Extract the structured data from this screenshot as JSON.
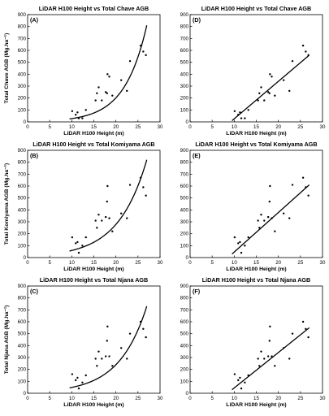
{
  "chart_data": [
    {
      "panel_label": "(A)",
      "type": "scatter",
      "title": "LiDAR H100 Height vs Total Chave AGB",
      "xlabel": "LiDAR H100 Height (m)",
      "ylabel": "Total Chave AGB (Mg.ha⁻¹)",
      "xlim": [
        0,
        30
      ],
      "ylim": [
        0,
        900
      ],
      "xticks": [
        0,
        5,
        10,
        15,
        20,
        25,
        30
      ],
      "yticks": [
        0,
        100,
        200,
        300,
        400,
        500,
        600,
        700,
        800,
        900
      ],
      "points": {
        "x": [
          10.1,
          10.9,
          11.3,
          11.6,
          12.4,
          13.2,
          15.4,
          15.7,
          16.1,
          16.8,
          17.7,
          18.0,
          18.1,
          18.5,
          19.2,
          21.2,
          22.5,
          23.2,
          25.6,
          26.2,
          26.8
        ],
        "y": [
          90,
          60,
          80,
          30,
          30,
          100,
          180,
          240,
          290,
          180,
          250,
          240,
          400,
          380,
          220,
          350,
          260,
          510,
          640,
          590,
          560
        ]
      },
      "fit": {
        "model": "exponential",
        "x": [
          9.5,
          12,
          14,
          16,
          18,
          20,
          22,
          24,
          26,
          27
        ],
        "y": [
          25,
          55,
          100,
          155,
          220,
          305,
          410,
          540,
          700,
          810
        ]
      }
    },
    {
      "panel_label": "(D)",
      "type": "scatter",
      "title": "LiDAR H100 Height vs Total Chave AGB",
      "xlabel": "LiDAR H100 Height (m)",
      "ylabel": "",
      "xlim": [
        0,
        30
      ],
      "ylim": [
        0,
        900
      ],
      "xticks": [
        0,
        5,
        10,
        15,
        20,
        25,
        30
      ],
      "yticks": [
        0,
        100,
        200,
        300,
        400,
        500,
        600,
        700,
        800,
        900
      ],
      "points": {
        "x": [
          10.1,
          10.9,
          11.3,
          11.6,
          12.4,
          13.2,
          15.4,
          15.7,
          16.1,
          16.8,
          17.7,
          18.0,
          18.1,
          18.5,
          19.2,
          21.2,
          22.5,
          23.2,
          25.6,
          26.2,
          26.8
        ],
        "y": [
          90,
          60,
          80,
          30,
          30,
          100,
          180,
          240,
          290,
          180,
          250,
          240,
          400,
          380,
          220,
          350,
          260,
          510,
          640,
          590,
          560
        ]
      },
      "fit": {
        "model": "linear",
        "x": [
          9.5,
          27
        ],
        "y": [
          10,
          560
        ]
      }
    },
    {
      "panel_label": "(B)",
      "type": "scatter",
      "title": "LiDAR H100 Height vs Total Komiyama AGB",
      "xlabel": "LiDAR H100 Height (m)",
      "ylabel": "Total Komiyama AGB (Mg.ha⁻¹)",
      "xlim": [
        0,
        30
      ],
      "ylim": [
        0,
        900
      ],
      "xticks": [
        0,
        5,
        10,
        15,
        20,
        25,
        30
      ],
      "yticks": [
        0,
        100,
        200,
        300,
        400,
        500,
        600,
        700,
        800,
        900
      ],
      "points": {
        "x": [
          10.1,
          10.9,
          11.3,
          11.6,
          12.4,
          13.2,
          15.4,
          15.7,
          16.1,
          16.8,
          17.7,
          18.0,
          18.1,
          18.5,
          19.2,
          21.2,
          22.5,
          23.2,
          25.6,
          26.2,
          26.8
        ],
        "y": [
          170,
          120,
          130,
          40,
          100,
          170,
          310,
          250,
          360,
          310,
          340,
          470,
          600,
          330,
          220,
          370,
          330,
          610,
          670,
          590,
          520
        ]
      },
      "fit": {
        "model": "exponential",
        "x": [
          9.5,
          12,
          14,
          16,
          18,
          20,
          22,
          24,
          26,
          27
        ],
        "y": [
          55,
          95,
          145,
          205,
          275,
          360,
          465,
          590,
          730,
          820
        ]
      }
    },
    {
      "panel_label": "(E)",
      "type": "scatter",
      "title": "LiDAR H100 Height vs Total Komiyama AGB",
      "xlabel": "LiDAR H100 Height (m)",
      "ylabel": "",
      "xlim": [
        0,
        30
      ],
      "ylim": [
        0,
        900
      ],
      "xticks": [
        0,
        5,
        10,
        15,
        20,
        25,
        30
      ],
      "yticks": [
        0,
        100,
        200,
        300,
        400,
        500,
        600,
        700,
        800,
        900
      ],
      "points": {
        "x": [
          10.1,
          10.9,
          11.3,
          11.6,
          12.4,
          13.2,
          15.4,
          15.7,
          16.1,
          16.8,
          17.7,
          18.0,
          18.1,
          18.5,
          19.2,
          21.2,
          22.5,
          23.2,
          25.6,
          26.2,
          26.8
        ],
        "y": [
          170,
          120,
          130,
          40,
          100,
          170,
          310,
          250,
          360,
          310,
          340,
          470,
          600,
          330,
          220,
          370,
          330,
          610,
          670,
          590,
          520
        ]
      },
      "fit": {
        "model": "linear",
        "x": [
          9.5,
          27
        ],
        "y": [
          30,
          610
        ]
      }
    },
    {
      "panel_label": "(C)",
      "type": "scatter",
      "title": "LiDAR H100 Height vs Total Njana AGB",
      "xlabel": "LiDAR H100 Height (m)",
      "ylabel": "Total Njana AGB (Mg.ha⁻¹)",
      "xlim": [
        0,
        30
      ],
      "ylim": [
        0,
        900
      ],
      "xticks": [
        0,
        5,
        10,
        15,
        20,
        25,
        30
      ],
      "yticks": [
        0,
        100,
        200,
        300,
        400,
        500,
        600,
        700,
        800,
        900
      ],
      "points": {
        "x": [
          10.1,
          10.9,
          11.3,
          11.6,
          12.4,
          13.2,
          15.4,
          15.7,
          16.1,
          16.8,
          17.7,
          18.0,
          18.1,
          18.5,
          19.2,
          21.2,
          22.5,
          23.2,
          25.6,
          26.2,
          26.8
        ],
        "y": [
          160,
          110,
          130,
          40,
          90,
          150,
          290,
          230,
          350,
          290,
          310,
          440,
          560,
          310,
          230,
          380,
          290,
          500,
          600,
          540,
          470
        ]
      },
      "fit": {
        "model": "exponential",
        "x": [
          9.5,
          12,
          14,
          16,
          18,
          20,
          22,
          24,
          26,
          27
        ],
        "y": [
          45,
          85,
          130,
          185,
          250,
          325,
          415,
          520,
          650,
          730
        ]
      }
    },
    {
      "panel_label": "(F)",
      "type": "scatter",
      "title": "LiDAR H100 Height vs Total Njana AGB",
      "xlabel": "LiDAR H100 Height (m)",
      "ylabel": "",
      "xlim": [
        0,
        30
      ],
      "ylim": [
        0,
        900
      ],
      "xticks": [
        0,
        5,
        10,
        15,
        20,
        25,
        30
      ],
      "yticks": [
        0,
        100,
        200,
        300,
        400,
        500,
        600,
        700,
        800,
        900
      ],
      "points": {
        "x": [
          10.1,
          10.9,
          11.3,
          11.6,
          12.4,
          13.2,
          15.4,
          15.7,
          16.1,
          16.8,
          17.7,
          18.0,
          18.1,
          18.5,
          19.2,
          21.2,
          22.5,
          23.2,
          25.6,
          26.2,
          26.8
        ],
        "y": [
          160,
          110,
          130,
          40,
          90,
          150,
          290,
          230,
          350,
          290,
          310,
          440,
          560,
          310,
          230,
          380,
          290,
          500,
          600,
          540,
          470
        ]
      },
      "fit": {
        "model": "linear",
        "x": [
          9.5,
          27
        ],
        "y": [
          30,
          550
        ]
      }
    }
  ]
}
